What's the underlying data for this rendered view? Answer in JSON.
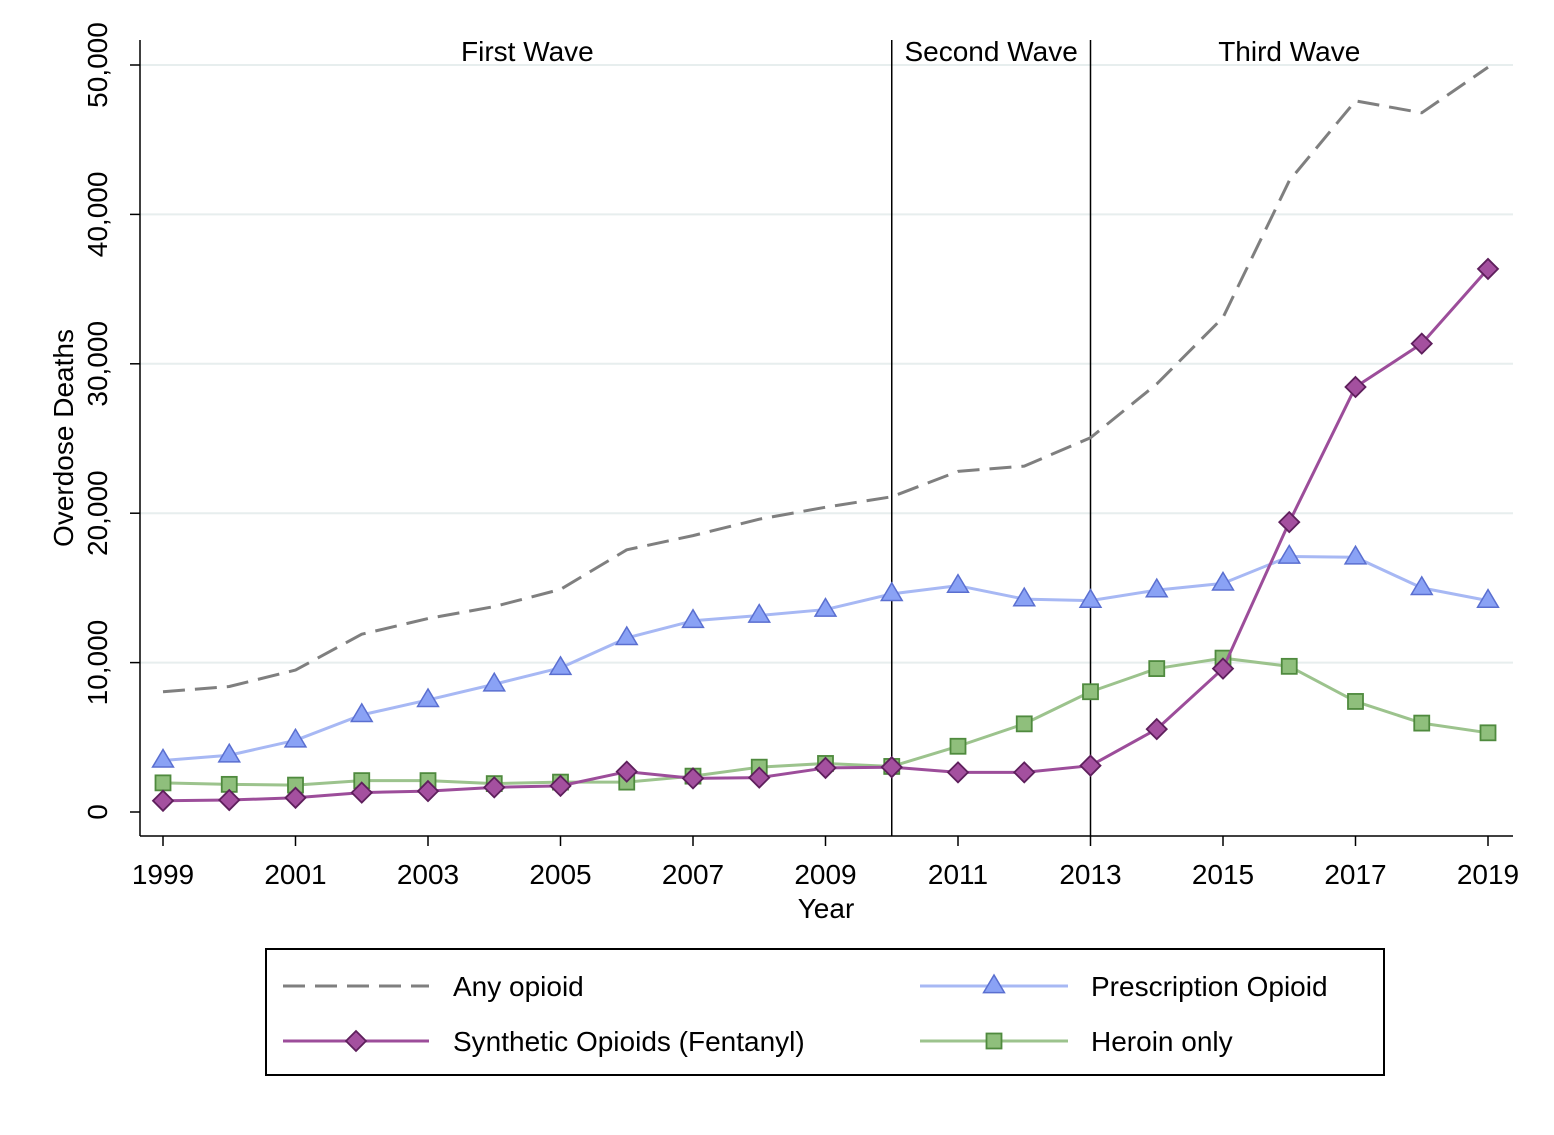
{
  "chart_data": {
    "type": "line",
    "title": "",
    "xlabel": "Year",
    "ylabel": "Overdose Deaths",
    "x": [
      1999,
      2000,
      2001,
      2002,
      2003,
      2004,
      2005,
      2006,
      2007,
      2008,
      2009,
      2010,
      2011,
      2012,
      2013,
      2014,
      2015,
      2016,
      2017,
      2018,
      2019
    ],
    "xlim": [
      1999,
      2019
    ],
    "ylim": [
      0,
      50000
    ],
    "x_ticks": [
      1999,
      2001,
      2003,
      2005,
      2007,
      2009,
      2011,
      2013,
      2015,
      2017,
      2019
    ],
    "x_tick_labels": [
      "1999",
      "2001",
      "2003",
      "2005",
      "2007",
      "2009",
      "2011",
      "2013",
      "2015",
      "2017",
      "2019"
    ],
    "y_ticks": [
      0,
      10000,
      20000,
      30000,
      40000,
      50000
    ],
    "y_tick_labels": [
      "0",
      "10,000",
      "20,000",
      "30,000",
      "40,000",
      "50,000"
    ],
    "grid": true,
    "legend_position": "bottom",
    "wave_lines": [
      2010,
      2013
    ],
    "wave_labels": [
      {
        "text": "First Wave",
        "x": 2004.5
      },
      {
        "text": "Second Wave",
        "x": 2011.5
      },
      {
        "text": "Third Wave",
        "x": 2016
      }
    ],
    "series": [
      {
        "name": "Any opioid",
        "color": "#7f7f7f",
        "style": "dashed",
        "marker": "none",
        "values": [
          8050,
          8400,
          9500,
          11900,
          12950,
          13750,
          14900,
          17550,
          18500,
          19600,
          20400,
          21100,
          22800,
          23150,
          25050,
          28650,
          33100,
          42250,
          47600,
          46800,
          49850
        ]
      },
      {
        "name": "Prescription Opioid",
        "color": "#a7b8f4",
        "marker_color": "#8aa2f5",
        "marker_stroke": "#5a6fd0",
        "style": "solid",
        "marker": "triangle",
        "values": [
          3450,
          3800,
          4800,
          6500,
          7500,
          8550,
          9650,
          11650,
          12800,
          13150,
          13550,
          14600,
          15150,
          14250,
          14150,
          14850,
          15300,
          17100,
          17050,
          15000,
          14150
        ]
      },
      {
        "name": "Synthetic Opioids (Fentanyl)",
        "color": "#9c4d9a",
        "marker_color": "#a4509f",
        "marker_stroke": "#5e1f5c",
        "style": "solid",
        "marker": "diamond",
        "values": [
          750,
          800,
          950,
          1300,
          1400,
          1650,
          1750,
          2700,
          2250,
          2300,
          2950,
          3000,
          2650,
          2650,
          3100,
          5550,
          9600,
          19400,
          28450,
          31350,
          36350
        ]
      },
      {
        "name": "Heroin only",
        "color": "#9cc38d",
        "marker_color": "#8fbf7c",
        "marker_stroke": "#4f8a3e",
        "style": "solid",
        "marker": "square",
        "values": [
          1950,
          1850,
          1800,
          2100,
          2100,
          1900,
          2000,
          2000,
          2400,
          3000,
          3250,
          3050,
          4400,
          5900,
          8050,
          9600,
          10300,
          9750,
          7400,
          5950,
          5300
        ]
      }
    ]
  }
}
